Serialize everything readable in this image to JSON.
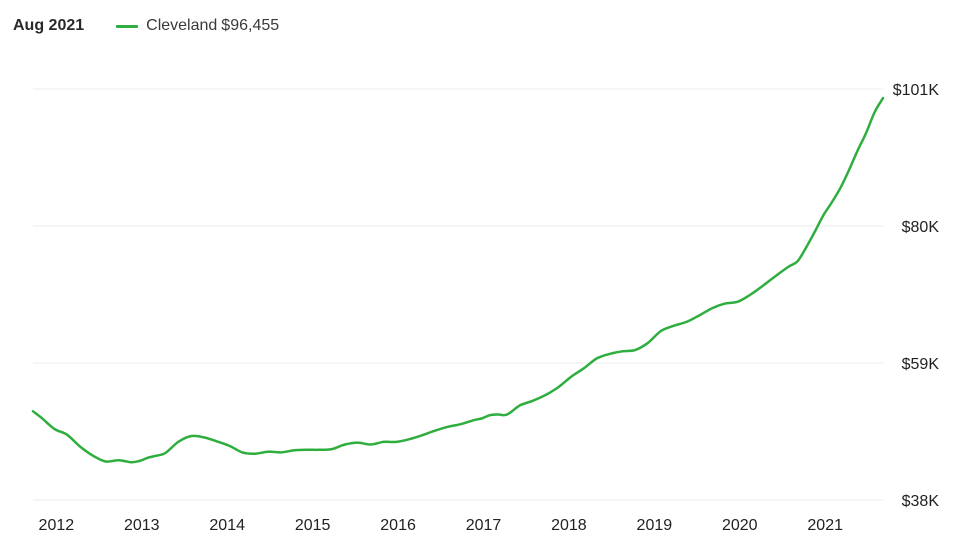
{
  "header": {
    "date_label": "Aug 2021",
    "legend": {
      "name": "Cleveland",
      "value": "$96,455"
    }
  },
  "colors": {
    "series": "#2fae3f",
    "grid": "#ececec",
    "text": "#222222"
  },
  "chart_data": {
    "type": "line",
    "title": "",
    "xlabel": "",
    "ylabel": "",
    "grid": true,
    "legend_placement": "top-left",
    "xlim": [
      2011.75,
      2021.7
    ],
    "ylim": [
      38,
      101
    ],
    "x_ticks": [
      2012,
      2013,
      2014,
      2015,
      2016,
      2017,
      2018,
      2019,
      2020,
      2021
    ],
    "x_tick_labels": [
      "2012",
      "2013",
      "2014",
      "2015",
      "2016",
      "2017",
      "2018",
      "2019",
      "2020",
      "2021"
    ],
    "y_ticks": [
      38,
      59,
      80,
      101
    ],
    "y_tick_labels": [
      "$38K",
      "$59K",
      "$80K",
      "$101K"
    ],
    "series": [
      {
        "name": "Cleveland",
        "x": [
          2011.75,
          2011.85,
          2012.0,
          2012.15,
          2012.3,
          2012.45,
          2012.6,
          2012.75,
          2012.9,
          2013.0,
          2013.1,
          2013.2,
          2013.3,
          2013.45,
          2013.6,
          2013.75,
          2013.9,
          2014.05,
          2014.2,
          2014.35,
          2014.5,
          2014.65,
          2014.8,
          2014.95,
          2015.1,
          2015.25,
          2015.4,
          2015.55,
          2015.7,
          2015.85,
          2016.0,
          2016.15,
          2016.3,
          2016.45,
          2016.6,
          2016.75,
          2016.9,
          2017.0,
          2017.1,
          2017.2,
          2017.3,
          2017.45,
          2017.6,
          2017.75,
          2017.9,
          2018.05,
          2018.2,
          2018.35,
          2018.5,
          2018.65,
          2018.8,
          2018.95,
          2019.1,
          2019.25,
          2019.4,
          2019.55,
          2019.7,
          2019.85,
          2020.0,
          2020.15,
          2020.3,
          2020.45,
          2020.6,
          2020.7,
          2020.8,
          2020.9,
          2021.0,
          2021.1,
          2021.2,
          2021.3,
          2021.4,
          2021.5,
          2021.6,
          2021.7
        ],
        "values": [
          51.6,
          50.6,
          48.9,
          48.0,
          46.2,
          44.8,
          43.9,
          44.1,
          43.8,
          44.0,
          44.5,
          44.8,
          45.2,
          46.9,
          47.8,
          47.6,
          47.0,
          46.3,
          45.3,
          45.1,
          45.4,
          45.3,
          45.6,
          45.7,
          45.7,
          45.8,
          46.5,
          46.8,
          46.5,
          46.9,
          46.9,
          47.3,
          47.9,
          48.6,
          49.2,
          49.6,
          50.2,
          50.5,
          51.0,
          51.1,
          51.1,
          52.5,
          53.2,
          54.1,
          55.3,
          56.9,
          58.2,
          59.7,
          60.4,
          60.8,
          61.0,
          62.1,
          63.9,
          64.7,
          65.3,
          66.3,
          67.4,
          68.1,
          68.4,
          69.5,
          70.9,
          72.4,
          73.8,
          74.6,
          76.7,
          79.1,
          81.6,
          83.6,
          85.8,
          88.5,
          91.5,
          94.2,
          97.4,
          99.6
        ]
      }
    ]
  }
}
